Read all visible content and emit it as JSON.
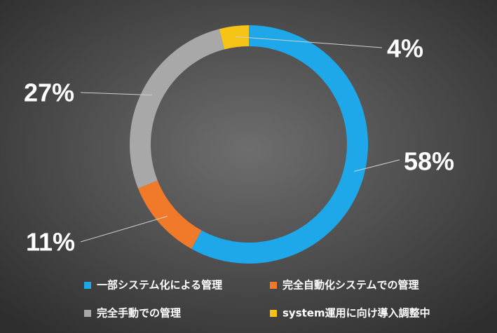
{
  "chart_data": {
    "type": "donut",
    "categories": [
      "一部システム化による管理",
      "完全自動化システムでの管理",
      "完全手動での管理",
      "system運用に向け導入調整中"
    ],
    "values": [
      58,
      11,
      27,
      4
    ],
    "value_labels": [
      "58%",
      "11%",
      "27%",
      "4%"
    ],
    "colors": [
      "#1fa8e9",
      "#f07a2a",
      "#a8a8a8",
      "#f6c417"
    ]
  }
}
